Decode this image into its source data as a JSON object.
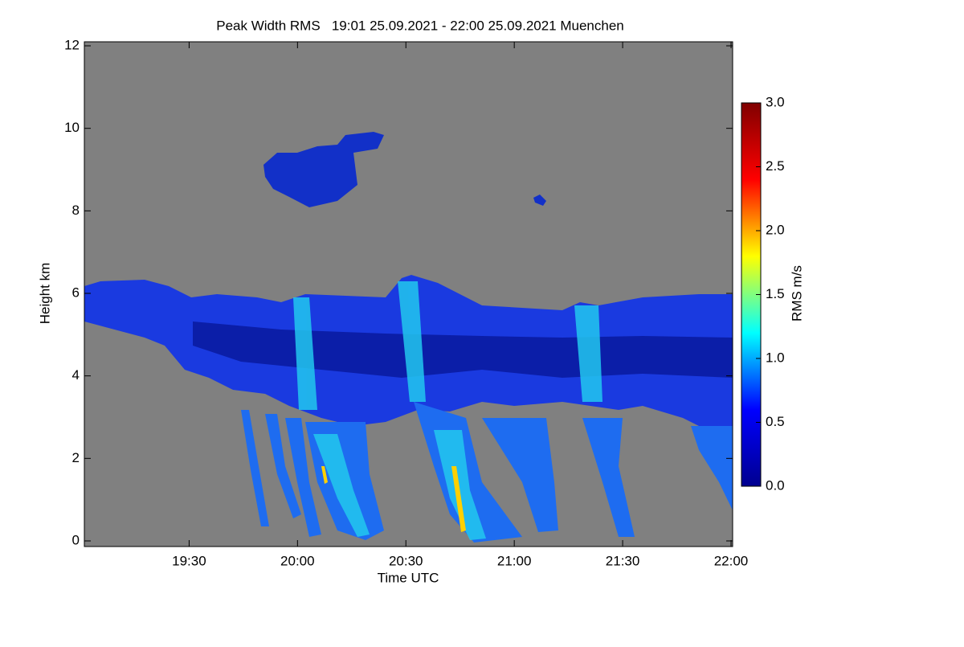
{
  "chart_data": {
    "type": "heatmap",
    "title": "Peak Width RMS   19:01 25.09.2021 - 22:00 25.09.2021 Muenchen",
    "x_label": "Time UTC",
    "y_label": "Height km",
    "colorbar_label": "RMS m/s",
    "xlim": [
      1141,
      1320
    ],
    "xticks": [
      {
        "value": 1170,
        "label": "19:30"
      },
      {
        "value": 1200,
        "label": "20:00"
      },
      {
        "value": 1230,
        "label": "20:30"
      },
      {
        "value": 1260,
        "label": "21:00"
      },
      {
        "value": 1290,
        "label": "21:30"
      },
      {
        "value": 1320,
        "label": "22:00"
      }
    ],
    "ylim": [
      0,
      12
    ],
    "yticks": [
      0,
      2,
      4,
      6,
      8,
      10,
      12
    ],
    "clim": [
      0,
      3
    ],
    "cticks": [
      {
        "value": 0,
        "label": "0.0"
      },
      {
        "value": 0.5,
        "label": "0.5"
      },
      {
        "value": 1,
        "label": "1.0"
      },
      {
        "value": 1.5,
        "label": "1.5"
      },
      {
        "value": 2,
        "label": "2.0"
      },
      {
        "value": 2.5,
        "label": "2.5"
      },
      {
        "value": 3,
        "label": "3.0"
      }
    ],
    "colormap": [
      "#00008f",
      "#0000ff",
      "#00ffff",
      "#ffff00",
      "#ff0000",
      "#800000"
    ],
    "background": "#808080"
  }
}
